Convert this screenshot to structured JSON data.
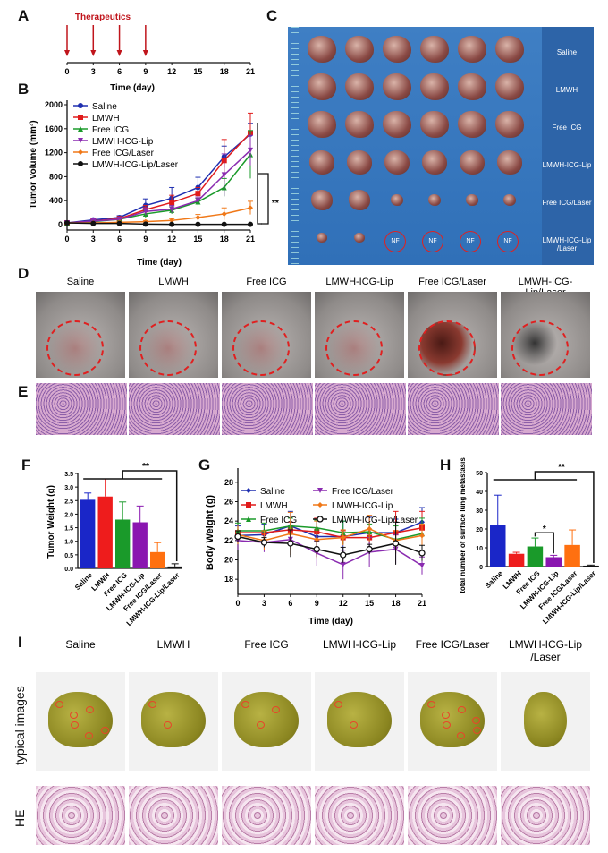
{
  "panels": {
    "A": "A",
    "B": "B",
    "C": "C",
    "D": "D",
    "E": "E",
    "F": "F",
    "G": "G",
    "H": "H",
    "I": "I"
  },
  "groups": [
    "Saline",
    "LMWH",
    "Free ICG",
    "LMWH-ICG-Lip",
    "Free ICG/Laser",
    "LMWH-ICG-Lip/Laser"
  ],
  "panelA": {
    "label": "Therapeutics",
    "dose_days": [
      0,
      3,
      6,
      9
    ],
    "ticks": [
      0,
      3,
      6,
      9,
      12,
      15,
      18,
      21
    ],
    "xlabel": "Time (day)",
    "arrow_color": "#c0151c"
  },
  "panelC": {
    "row_labels": [
      "Saline",
      "LMWH",
      "Free ICG",
      "LMWH-ICG-Lip",
      "Free ICG/Laser",
      "LMWH-ICG-Lip /Laser"
    ],
    "nf": "NF"
  },
  "panelD": {
    "labels": [
      "Saline",
      "LMWH",
      "Free ICG",
      "LMWH-ICG-Lip",
      "Free ICG/Laser",
      "LMWH-ICG-Lip/Laser"
    ]
  },
  "panelI": {
    "labels": [
      "Saline",
      "LMWH",
      "Free ICG",
      "LMWH-ICG-Lip",
      "Free ICG/Laser",
      "LMWH-ICG-Lip /Laser"
    ],
    "row1": "typical images",
    "row2": "HE"
  },
  "chart_data": [
    {
      "id": "B",
      "type": "line",
      "xlabel": "Time (day)",
      "ylabel": "Tumor Volume (mm³)",
      "x": [
        0,
        3,
        6,
        9,
        12,
        15,
        18,
        21
      ],
      "ylim": [
        0,
        2000
      ],
      "yticks": [
        0,
        400,
        800,
        1200,
        1600,
        2000
      ],
      "significance": "**",
      "series": [
        {
          "name": "Saline",
          "color": "#1f2fb0",
          "marker": "circle",
          "values": [
            30,
            80,
            120,
            320,
            440,
            620,
            1130,
            1510
          ],
          "err": [
            20,
            30,
            30,
            110,
            180,
            170,
            180,
            180
          ]
        },
        {
          "name": "LMWH",
          "color": "#e01b1b",
          "marker": "square",
          "values": [
            30,
            60,
            100,
            250,
            370,
            520,
            1070,
            1530
          ],
          "err": [
            20,
            25,
            30,
            70,
            120,
            100,
            350,
            330
          ]
        },
        {
          "name": "Free ICG",
          "color": "#1a9a2a",
          "marker": "triangle",
          "values": [
            30,
            50,
            90,
            180,
            240,
            380,
            620,
            1170
          ],
          "err": [
            20,
            20,
            25,
            60,
            60,
            60,
            150,
            400
          ]
        },
        {
          "name": "LMWH-ICG-Lip",
          "color": "#8a2bb0",
          "marker": "triangle-down",
          "values": [
            30,
            60,
            90,
            220,
            260,
            400,
            830,
            1240
          ],
          "err": [
            20,
            20,
            25,
            60,
            60,
            60,
            350,
            250
          ]
        },
        {
          "name": "Free ICG/Laser",
          "color": "#f07818",
          "marker": "diamond",
          "values": [
            30,
            30,
            40,
            50,
            70,
            120,
            180,
            280
          ],
          "err": [
            10,
            10,
            10,
            20,
            30,
            50,
            100,
            110
          ]
        },
        {
          "name": "LMWH-ICG-Lip/Laser",
          "color": "#111111",
          "marker": "circle",
          "values": [
            30,
            20,
            20,
            10,
            5,
            5,
            5,
            5
          ],
          "err": [
            5,
            5,
            5,
            5,
            3,
            3,
            3,
            3
          ]
        }
      ]
    },
    {
      "id": "F",
      "type": "bar",
      "ylabel": "Tumor Weight (g)",
      "categories": [
        "Saline",
        "LMWH",
        "Free ICG",
        "LMWH-ICG-Lip",
        "Free ICG/Laser",
        "LMWH-ICG-Lip/Laser"
      ],
      "values": [
        2.53,
        2.65,
        1.8,
        1.7,
        0.6,
        0.07
      ],
      "err": [
        0.25,
        0.65,
        0.65,
        0.6,
        0.35,
        0.1
      ],
      "colors": [
        "#1a26c8",
        "#ee1c1c",
        "#1a9a2a",
        "#8a16b0",
        "#ff7010",
        "#111111"
      ],
      "ylim": [
        0,
        3.5
      ],
      "yticks": [
        "0.0",
        "0.5",
        "1.0",
        "1.5",
        "2.0",
        "2.5",
        "3.0",
        "3.5"
      ],
      "significance": "**"
    },
    {
      "id": "G",
      "type": "line",
      "xlabel": "Time (day)",
      "ylabel": "Body Weight (g)",
      "x": [
        0,
        3,
        6,
        9,
        12,
        15,
        18,
        21
      ],
      "ylim": [
        17,
        29
      ],
      "yticks": [
        18,
        20,
        22,
        24,
        26,
        28
      ],
      "series": [
        {
          "name": "Saline",
          "color": "#1f2fb0",
          "marker": "diamond",
          "values": [
            22.5,
            22.6,
            23.5,
            22.4,
            22.4,
            22.8,
            22.8,
            23.9
          ],
          "err": [
            1,
            1.1,
            1.5,
            1.8,
            1.6,
            1.6,
            1.4,
            1.5
          ]
        },
        {
          "name": "LMWH",
          "color": "#e01b1b",
          "marker": "square",
          "values": [
            22.8,
            22.8,
            23.1,
            22.9,
            22.3,
            22.3,
            22.8,
            23.3
          ],
          "err": [
            0.8,
            0.8,
            0.8,
            1.4,
            0.7,
            0.8,
            2.2,
            1.7
          ]
        },
        {
          "name": "Free ICG",
          "color": "#1a9a2a",
          "marker": "triangle",
          "values": [
            23.0,
            23.0,
            23.5,
            23.3,
            22.8,
            22.9,
            22.1,
            22.7
          ],
          "err": [
            0.8,
            0.8,
            0.8,
            0.8,
            1.2,
            0.8,
            1.4,
            1.6
          ]
        },
        {
          "name": "Free ICG/Laser",
          "color": "#8a2bb0",
          "marker": "triangle-down",
          "values": [
            22.0,
            21.8,
            22.1,
            20.7,
            19.5,
            20.8,
            21.1,
            19.4
          ],
          "err": [
            1,
            1,
            1,
            1.3,
            1.5,
            1.5,
            1.5,
            0.9
          ]
        },
        {
          "name": "LMWH-ICG-Lip",
          "color": "#f07818",
          "marker": "diamond",
          "values": [
            22.6,
            22.0,
            22.7,
            22.1,
            22.3,
            23.2,
            22.0,
            22.5
          ],
          "err": [
            1,
            1,
            2.2,
            1.9,
            0.8,
            1.4,
            1,
            1.2
          ]
        },
        {
          "name": "LMWH-ICG-Lip/Laser",
          "color": "#111111",
          "marker": "open-circle",
          "values": [
            22.4,
            21.8,
            21.7,
            21.1,
            20.5,
            21.1,
            21.7,
            20.7
          ],
          "err": [
            0.6,
            0.5,
            1.4,
            0.8,
            0.8,
            0.5,
            2.2,
            0.8
          ]
        }
      ]
    },
    {
      "id": "H",
      "type": "bar",
      "ylabel": "total number of surface lung metastasis",
      "categories": [
        "Saline",
        "LMWH",
        "Free ICG",
        "LMWH-ICG-Lip",
        "Free ICG/Laser",
        "LMWH-ICG-Lip/Laser"
      ],
      "values": [
        22,
        6.8,
        10.7,
        5,
        11.5,
        0.5
      ],
      "err": [
        16,
        0.8,
        4.5,
        1,
        8,
        0.3
      ],
      "colors": [
        "#1a26c8",
        "#ee1c1c",
        "#1a9a2a",
        "#8a16b0",
        "#ff7010",
        "#111111"
      ],
      "ylim": [
        0,
        50
      ],
      "yticks": [
        "0",
        "10",
        "20",
        "30",
        "40",
        "50"
      ],
      "significance": "**",
      "significance2": "*"
    }
  ]
}
